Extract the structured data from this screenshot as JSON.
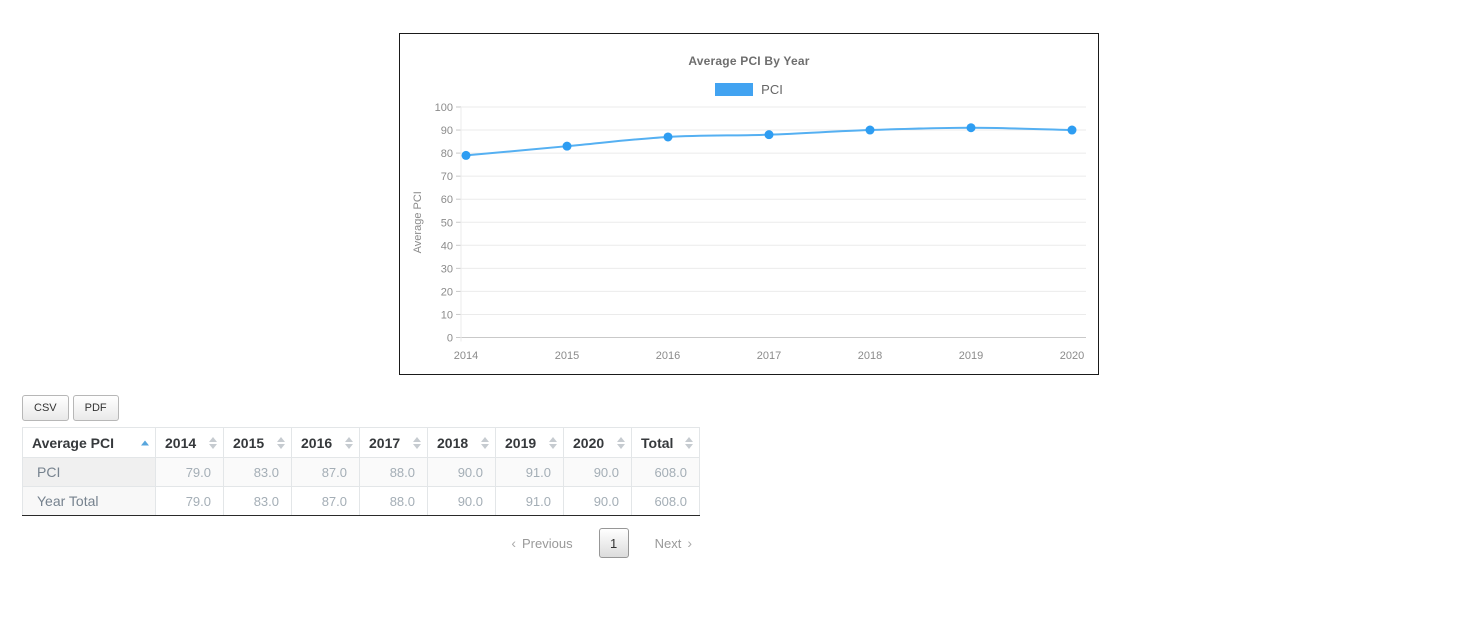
{
  "chart_panel": {
    "title": "Average PCI By Year",
    "legend": {
      "label": "PCI",
      "swatch_color": "#42a3f1"
    }
  },
  "chart_data": {
    "type": "line",
    "title": "Average PCI By Year",
    "x": [
      2014,
      2015,
      2016,
      2017,
      2018,
      2019,
      2020
    ],
    "series": [
      {
        "name": "PCI",
        "values": [
          79,
          83,
          87,
          88,
          90,
          91,
          90
        ]
      }
    ],
    "xlabel": "",
    "ylabel": "Average PCI",
    "ylim": [
      0,
      100
    ],
    "ytick_step": 10,
    "grid": true,
    "legend_position": "top",
    "line_color": "#55b0f2",
    "point_color": "#2e9df2",
    "grid_color": "#ebebeb",
    "axis_line_color": "#c9c9c9",
    "tick_label_color": "#8b8b8b"
  },
  "export_buttons": [
    {
      "label": "CSV"
    },
    {
      "label": "PDF"
    }
  ],
  "table": {
    "headers": [
      {
        "label": "Average PCI",
        "sort": "asc"
      },
      {
        "label": "2014",
        "sort": "none"
      },
      {
        "label": "2015",
        "sort": "none"
      },
      {
        "label": "2016",
        "sort": "none"
      },
      {
        "label": "2017",
        "sort": "none"
      },
      {
        "label": "2018",
        "sort": "none"
      },
      {
        "label": "2019",
        "sort": "none"
      },
      {
        "label": "2020",
        "sort": "none"
      },
      {
        "label": "Total",
        "sort": "none"
      }
    ],
    "rows": [
      {
        "label": "PCI",
        "values": [
          "79.0",
          "83.0",
          "87.0",
          "88.0",
          "90.0",
          "91.0",
          "90.0",
          "608.0"
        ]
      },
      {
        "label": "Year Total",
        "values": [
          "79.0",
          "83.0",
          "87.0",
          "88.0",
          "90.0",
          "91.0",
          "90.0",
          "608.0"
        ]
      }
    ]
  },
  "pagination": {
    "prev_chevron": "‹",
    "previous_label": "Previous",
    "current_page": "1",
    "next_label": "Next",
    "next_chevron": "›"
  }
}
